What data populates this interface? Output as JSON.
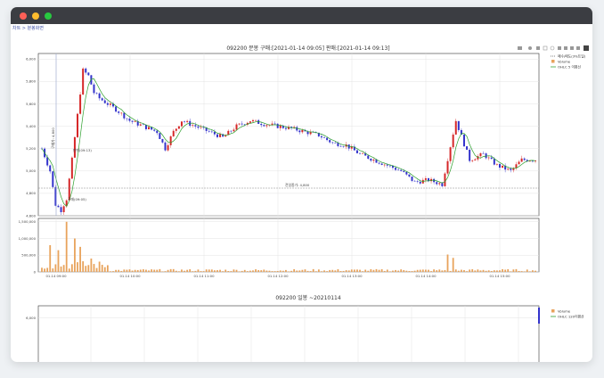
{
  "window": {
    "breadcrumb": "차트 > 분봉화면",
    "controls": [
      "close",
      "minimize",
      "maximize"
    ]
  },
  "toolbar": {
    "icons": [
      "camera-icon",
      "zoom-icon",
      "pan-icon",
      "box-select-icon",
      "lasso-icon",
      "zoom-in-icon",
      "zoom-out-icon",
      "autoscale-icon",
      "reset-icon",
      "plotly-logo-icon"
    ]
  },
  "chart_top": {
    "title": "092200 분봉 구매:[2021-01-14 09:05] 판매:[2021-01-14 09:13]",
    "legend": [
      "매수/매도(3%트일)",
      "Volume",
      "OHLC 5 이평선"
    ],
    "colors": {
      "up": "#d62728",
      "down": "#3333cc",
      "volume": "#e8a35c",
      "ma": "#2ca02c"
    },
    "price_ticks": [
      "6,000",
      "5,800",
      "5,600",
      "5,400",
      "5,200",
      "5,000",
      "4,800",
      "4,600"
    ],
    "volume_ticks": [
      "1,500,000",
      "1,000,000",
      "500,000",
      "0"
    ],
    "time_ticks": [
      "01.14 09:00",
      "01.14 10:00",
      "01.14 11:00",
      "01.14 12:00",
      "01.14 13:00",
      "01.14 14:00",
      "01.14 15:00"
    ],
    "annotations": {
      "buy": "구매(09:05)",
      "sell": "판매(09:13)",
      "ref": "전일종가: 4,800",
      "vline": "구매가: 4,800"
    }
  },
  "chart_bottom": {
    "title": "092200 일봉 ~20210114",
    "legend": [
      "Volume",
      "OHLC 120이평선"
    ],
    "price_ticks": [
      "6,000"
    ]
  },
  "chart_data": {
    "type": "candlestick",
    "x_range": [
      "01.14 09:00",
      "01.14 15:30"
    ],
    "ylim": [
      4600,
      6050
    ],
    "volume_ylim": [
      0,
      1600000
    ],
    "reference_price": 4800,
    "close_path": [
      [
        0,
        5200
      ],
      [
        3,
        5000
      ],
      [
        5,
        4700
      ],
      [
        7,
        4650
      ],
      [
        9,
        4750
      ],
      [
        11,
        5100
      ],
      [
        13,
        5500
      ],
      [
        15,
        5900
      ],
      [
        17,
        5850
      ],
      [
        19,
        5700
      ],
      [
        21,
        5650
      ],
      [
        24,
        5600
      ],
      [
        27,
        5550
      ],
      [
        32,
        5450
      ],
      [
        37,
        5400
      ],
      [
        42,
        5350
      ],
      [
        45,
        5200
      ],
      [
        48,
        5350
      ],
      [
        51,
        5450
      ],
      [
        56,
        5400
      ],
      [
        61,
        5350
      ],
      [
        66,
        5300
      ],
      [
        71,
        5400
      ],
      [
        76,
        5450
      ],
      [
        81,
        5420
      ],
      [
        86,
        5400
      ],
      [
        91,
        5380
      ],
      [
        96,
        5350
      ],
      [
        101,
        5320
      ],
      [
        106,
        5250
      ],
      [
        111,
        5230
      ],
      [
        116,
        5150
      ],
      [
        121,
        5100
      ],
      [
        126,
        5050
      ],
      [
        131,
        5000
      ],
      [
        136,
        4900
      ],
      [
        141,
        4920
      ],
      [
        146,
        4880
      ],
      [
        151,
        5450
      ],
      [
        156,
        5100
      ],
      [
        161,
        5150
      ],
      [
        166,
        5050
      ],
      [
        171,
        5000
      ],
      [
        175,
        5100
      ],
      [
        178,
        5100
      ]
    ],
    "volume_spikes": [
      [
        3,
        800000
      ],
      [
        6,
        650000
      ],
      [
        9,
        1500000
      ],
      [
        12,
        1000000
      ],
      [
        14,
        750000
      ],
      [
        18,
        400000
      ],
      [
        148,
        520000
      ],
      [
        150,
        420000
      ]
    ]
  }
}
